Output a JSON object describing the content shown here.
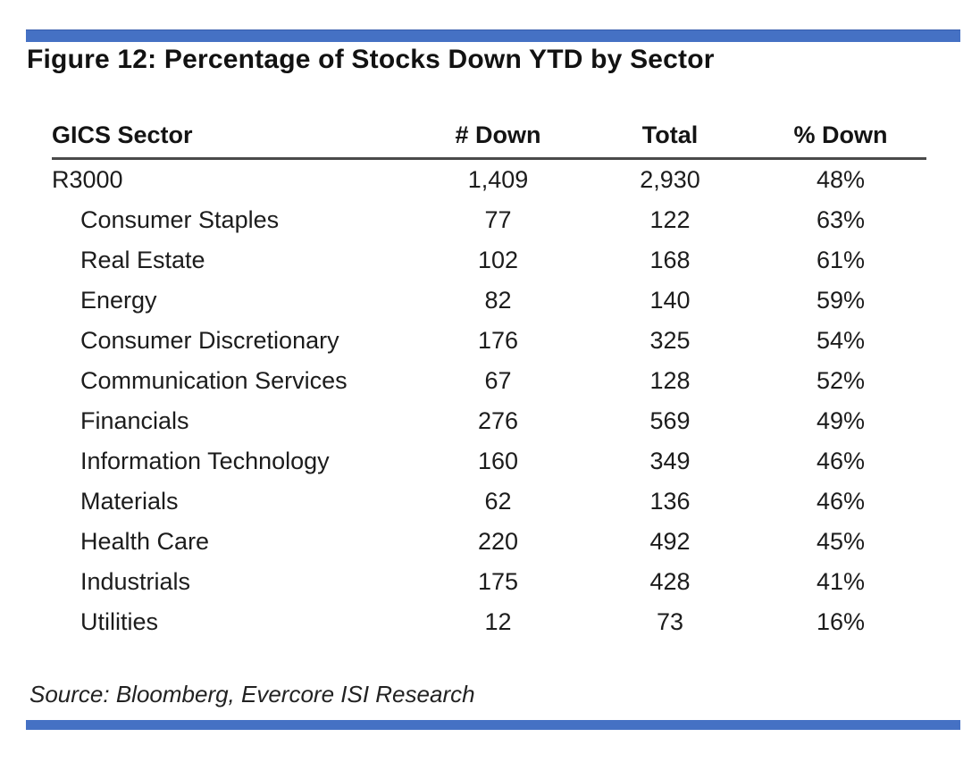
{
  "figure": {
    "title": "Figure 12: Percentage of Stocks Down YTD by Sector",
    "source_note": "Source: Bloomberg, Evercore ISI Research",
    "accent_color": "#4571c4"
  },
  "chart_data": {
    "type": "table",
    "title": "Percentage of Stocks Down YTD by Sector",
    "columns": [
      "GICS Sector",
      "# Down",
      "Total",
      "% Down"
    ],
    "rows": [
      {
        "sector": "R3000",
        "down": "1,409",
        "total": "2,930",
        "pct": "48%",
        "indent": false
      },
      {
        "sector": "Consumer Staples",
        "down": "77",
        "total": "122",
        "pct": "63%",
        "indent": true
      },
      {
        "sector": "Real Estate",
        "down": "102",
        "total": "168",
        "pct": "61%",
        "indent": true
      },
      {
        "sector": "Energy",
        "down": "82",
        "total": "140",
        "pct": "59%",
        "indent": true
      },
      {
        "sector": "Consumer Discretionary",
        "down": "176",
        "total": "325",
        "pct": "54%",
        "indent": true
      },
      {
        "sector": "Communication Services",
        "down": "67",
        "total": "128",
        "pct": "52%",
        "indent": true
      },
      {
        "sector": "Financials",
        "down": "276",
        "total": "569",
        "pct": "49%",
        "indent": true
      },
      {
        "sector": "Information Technology",
        "down": "160",
        "total": "349",
        "pct": "46%",
        "indent": true
      },
      {
        "sector": "Materials",
        "down": "62",
        "total": "136",
        "pct": "46%",
        "indent": true
      },
      {
        "sector": "Health Care",
        "down": "220",
        "total": "492",
        "pct": "45%",
        "indent": true
      },
      {
        "sector": "Industrials",
        "down": "175",
        "total": "428",
        "pct": "41%",
        "indent": true
      },
      {
        "sector": "Utilities",
        "down": "12",
        "total": "73",
        "pct": "16%",
        "indent": true
      }
    ]
  }
}
